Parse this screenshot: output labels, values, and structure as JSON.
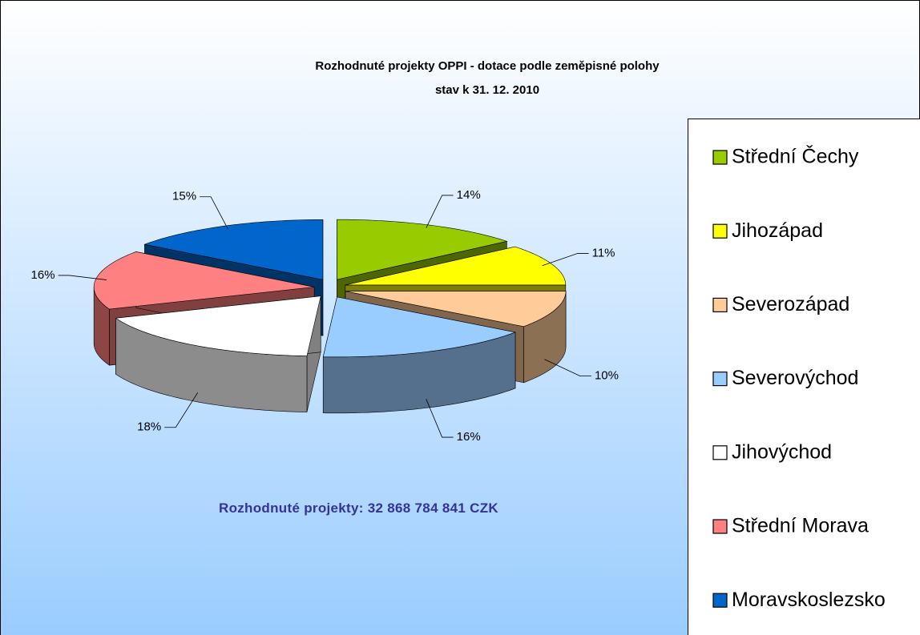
{
  "chart_data": {
    "type": "pie3d",
    "title": "Rozhodnuté projekty OPPI - dotace podle zeměpisné polohy",
    "subtitle": "stav k 31. 12. 2010",
    "annotation": "Rozhodnuté projekty: 32 868 784 841 CZK",
    "categories": [
      "Střední Čechy",
      "Jihozápad",
      "Severozápad",
      "Severovýchod",
      "Jihovýchod",
      "Střední Morava",
      "Moravskoslezsko"
    ],
    "values": [
      14,
      11,
      10,
      16,
      18,
      16,
      15
    ],
    "value_labels": [
      "14%",
      "11%",
      "10%",
      "16%",
      "18%",
      "16%",
      "15%"
    ],
    "colors": [
      "#99cc00",
      "#ffff00",
      "#ffcc99",
      "#99ccff",
      "#ffffff",
      "#ff8080",
      "#0066cc"
    ],
    "legend": "right"
  }
}
